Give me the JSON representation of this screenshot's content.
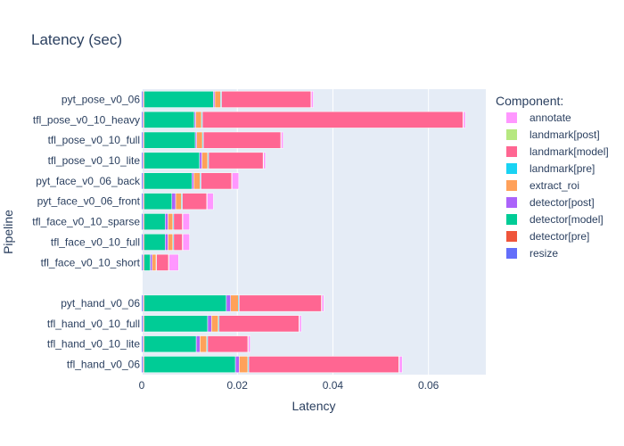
{
  "chart_data": {
    "type": "bar",
    "orientation": "horizontal",
    "stacked": true,
    "title": "Latency (sec)",
    "xlabel": "Latency",
    "ylabel": "Pipeline",
    "xlim": [
      0,
      0.072
    ],
    "xticks": [
      0,
      0.02,
      0.04,
      0.06
    ],
    "xtick_labels": [
      "0",
      "0.02",
      "0.04",
      "0.06"
    ],
    "legend_title": "Component:",
    "legend_position": "right",
    "categories": [
      "pyt_pose_v0_06",
      "tfl_pose_v0_10_heavy",
      "tfl_pose_v0_10_full",
      "tfl_pose_v0_10_lite",
      "pyt_face_v0_06_back",
      "pyt_face_v0_06_front",
      "tfl_face_v0_10_sparse",
      "tfl_face_v0_10_full",
      "tfl_face_v0_10_short",
      "",
      "pyt_hand_v0_06",
      "tfl_hand_v0_10_full",
      "tfl_hand_v0_10_lite",
      "tfl_hand_v0_06"
    ],
    "series": [
      {
        "name": "resize",
        "color": "#636efa",
        "values": [
          0.0003,
          0.0003,
          0.0003,
          0.0003,
          0.0003,
          0.0003,
          0.0003,
          0.0003,
          0.0003,
          0,
          0.0003,
          0.0003,
          0.0003,
          0.0003
        ]
      },
      {
        "name": "detector[pre]",
        "color": "#ef553b",
        "values": [
          0.0002,
          0.0002,
          0.0002,
          0.0002,
          0.0002,
          0.0002,
          0.0002,
          0.0002,
          0.0002,
          0,
          0.0002,
          0.0002,
          0.0002,
          0.0002
        ]
      },
      {
        "name": "detector[model]",
        "color": "#00cc96",
        "values": [
          0.0145,
          0.0105,
          0.0107,
          0.0116,
          0.01,
          0.0058,
          0.0044,
          0.0044,
          0.0013,
          0,
          0.0172,
          0.0133,
          0.0109,
          0.0191
        ]
      },
      {
        "name": "detector[post]",
        "color": "#ab63fa",
        "values": [
          0.0003,
          0.0003,
          0.0003,
          0.0005,
          0.0004,
          0.0008,
          0.0006,
          0.0006,
          0.0004,
          0,
          0.0009,
          0.0008,
          0.0008,
          0.0008
        ]
      },
      {
        "name": "extract_roi",
        "color": "#ffa15a",
        "values": [
          0.0012,
          0.0012,
          0.0012,
          0.0012,
          0.0013,
          0.0012,
          0.001,
          0.001,
          0.0008,
          0,
          0.0016,
          0.0014,
          0.0014,
          0.0018
        ]
      },
      {
        "name": "landmark[pre]",
        "color": "#19d3f3",
        "values": [
          0.0002,
          0.0002,
          0.0002,
          0.0002,
          0.0002,
          0.0002,
          0.0002,
          0.0002,
          0.0001,
          0,
          0.0002,
          0.0002,
          0.0002,
          0.0002
        ]
      },
      {
        "name": "landmark[model]",
        "color": "#ff6692",
        "values": [
          0.0187,
          0.0545,
          0.0162,
          0.0114,
          0.0064,
          0.0051,
          0.0018,
          0.0018,
          0.0025,
          0,
          0.0172,
          0.0167,
          0.0084,
          0.0314
        ]
      },
      {
        "name": "landmark[post]",
        "color": "#b6e880",
        "values": [
          0.0001,
          0.0001,
          0.0001,
          0.0001,
          0.0001,
          0.0001,
          0.0001,
          0.0001,
          0.0001,
          0,
          0.0001,
          0.0001,
          0.0001,
          0.0001
        ]
      },
      {
        "name": "annotate",
        "color": "#ff97ff",
        "values": [
          0.0004,
          0.0004,
          0.0004,
          0.0004,
          0.0014,
          0.0013,
          0.0014,
          0.0014,
          0.002,
          0,
          0.0004,
          0.0004,
          0.0004,
          0.0006
        ]
      }
    ],
    "legend_order": [
      "annotate",
      "landmark[post]",
      "landmark[model]",
      "landmark[pre]",
      "extract_roi",
      "detector[post]",
      "detector[model]",
      "detector[pre]",
      "resize"
    ]
  }
}
